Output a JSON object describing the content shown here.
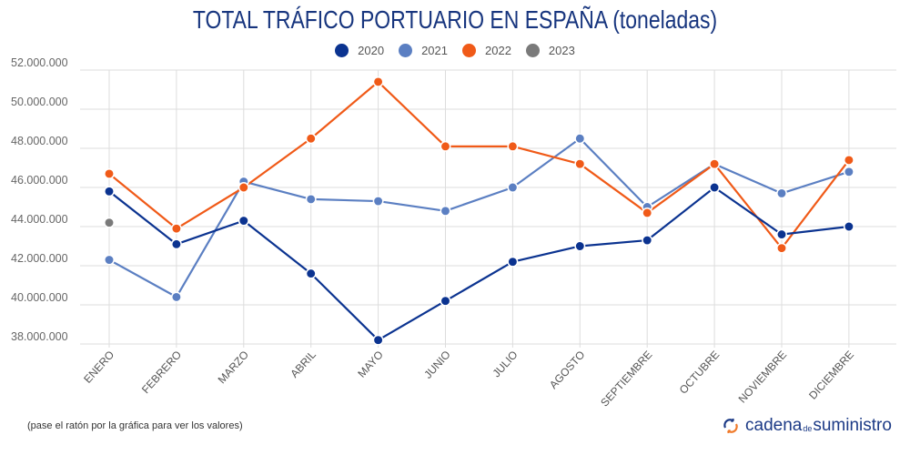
{
  "header": {
    "title": "TOTAL TRÁFICO PORTUARIO EN ESPAÑA (toneladas)"
  },
  "footer": {
    "note": "(pase el ratón por la gráfica para ver los valores)",
    "brand_main": "cadena",
    "brand_small": "de",
    "brand_tail": "suministro",
    "brand_icon": "circular-arrows-icon"
  },
  "colors": {
    "title": "#17357e",
    "2020": "#0b3390",
    "2021": "#5b7fc2",
    "2022": "#f05a18",
    "2023": "#7a7a7a",
    "grid": "#dddddd"
  },
  "chart_data": {
    "type": "line",
    "title": "TOTAL TRÁFICO PORTUARIO EN ESPAÑA (toneladas)",
    "xlabel": "",
    "ylabel": "",
    "ylim": [
      38000000,
      52000000
    ],
    "yticks": [
      38000000,
      40000000,
      42000000,
      44000000,
      46000000,
      48000000,
      50000000,
      52000000
    ],
    "ytick_labels": [
      "38.000.000",
      "40.000.000",
      "42.000.000",
      "44.000.000",
      "46.000.000",
      "48.000.000",
      "50.000.000",
      "52.000.000"
    ],
    "categories": [
      "ENERO",
      "FEBRERO",
      "MARZO",
      "ABRIL",
      "MAYO",
      "JUNIO",
      "JULIO",
      "AGOSTO",
      "SEPTIEMBRE",
      "OCTUBRE",
      "NOVIEMBRE",
      "DICIEMBRE"
    ],
    "grid": true,
    "legend_position": "top-center",
    "series": [
      {
        "name": "2020",
        "color": "#0b3390",
        "values": [
          45800000,
          43100000,
          44300000,
          41600000,
          38200000,
          40200000,
          42200000,
          43000000,
          43300000,
          46000000,
          43600000,
          44000000
        ]
      },
      {
        "name": "2021",
        "color": "#5b7fc2",
        "values": [
          42300000,
          40400000,
          46300000,
          45400000,
          45300000,
          44800000,
          46000000,
          48500000,
          45000000,
          47200000,
          45700000,
          46800000
        ]
      },
      {
        "name": "2022",
        "color": "#f05a18",
        "values": [
          46700000,
          43900000,
          46000000,
          48500000,
          51400000,
          48100000,
          48100000,
          47200000,
          44700000,
          47200000,
          42900000,
          47400000
        ]
      },
      {
        "name": "2023",
        "color": "#7a7a7a",
        "values": [
          44200000,
          null,
          null,
          null,
          null,
          null,
          null,
          null,
          null,
          null,
          null,
          null
        ]
      }
    ]
  }
}
